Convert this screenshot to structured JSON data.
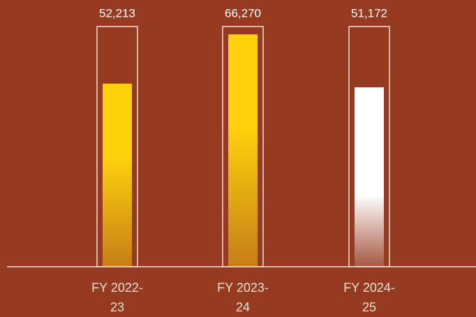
{
  "chart_data": {
    "type": "bar",
    "categories": [
      "FY 2022-23",
      "FY 2023-24",
      "FY 2024-25"
    ],
    "values": [
      52213,
      66270,
      51172
    ],
    "value_labels": [
      "52,213",
      "66,270",
      "51,172"
    ],
    "colors": [
      "#ffd10a",
      "#ffd10a",
      "#ffffff"
    ],
    "ylim": [
      0,
      68500
    ]
  }
}
